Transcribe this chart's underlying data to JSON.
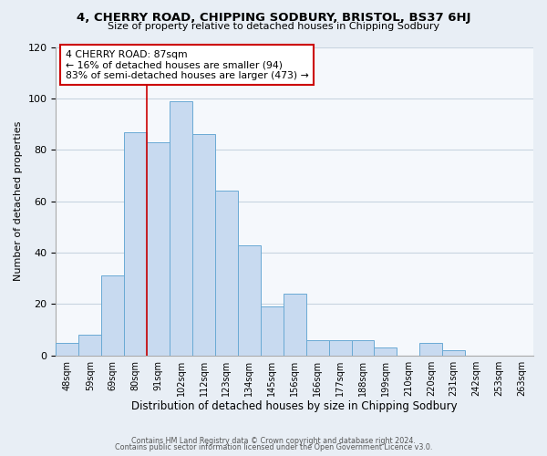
{
  "title": "4, CHERRY ROAD, CHIPPING SODBURY, BRISTOL, BS37 6HJ",
  "subtitle": "Size of property relative to detached houses in Chipping Sodbury",
  "xlabel": "Distribution of detached houses by size in Chipping Sodbury",
  "ylabel": "Number of detached properties",
  "footnote1": "Contains HM Land Registry data © Crown copyright and database right 2024.",
  "footnote2": "Contains public sector information licensed under the Open Government Licence v3.0.",
  "bar_labels": [
    "48sqm",
    "59sqm",
    "69sqm",
    "80sqm",
    "91sqm",
    "102sqm",
    "112sqm",
    "123sqm",
    "134sqm",
    "145sqm",
    "156sqm",
    "166sqm",
    "177sqm",
    "188sqm",
    "199sqm",
    "210sqm",
    "220sqm",
    "231sqm",
    "242sqm",
    "253sqm",
    "263sqm"
  ],
  "bar_values": [
    5,
    8,
    31,
    87,
    83,
    99,
    86,
    64,
    43,
    19,
    24,
    6,
    6,
    6,
    3,
    0,
    5,
    2,
    0,
    0,
    0
  ],
  "bar_color": "#c8daf0",
  "bar_edge_color": "#6aaad4",
  "vline_color": "#cc0000",
  "vline_index": 3.5,
  "annotation_title": "4 CHERRY ROAD: 87sqm",
  "annotation_line1": "← 16% of detached houses are smaller (94)",
  "annotation_line2": "83% of semi-detached houses are larger (473) →",
  "annotation_box_color": "white",
  "annotation_box_edge_color": "#cc0000",
  "ylim": [
    0,
    120
  ],
  "yticks": [
    0,
    20,
    40,
    60,
    80,
    100,
    120
  ],
  "background_color": "#e8eef5",
  "plot_background": "#f5f8fc",
  "grid_color": "#c8d4e0"
}
